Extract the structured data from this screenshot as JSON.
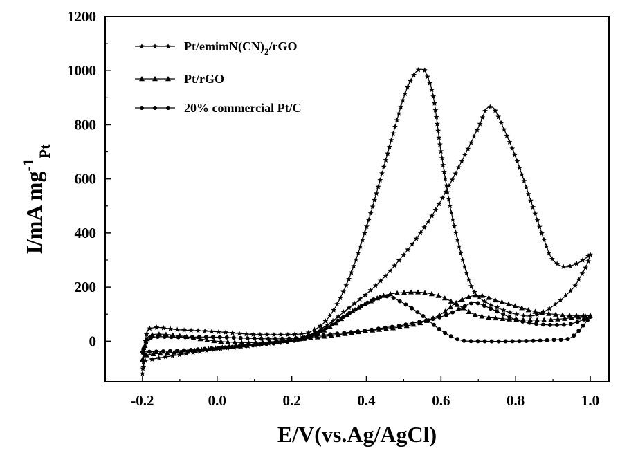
{
  "chart_data": {
    "type": "line",
    "title": "",
    "xlabel": "E/V(vs.Ag/AgCl)",
    "ylabel": "I/mA mg",
    "ylabel_sup": "-1",
    "ylabel_sub": "Pt",
    "xlim": [
      -0.3,
      1.05
    ],
    "ylim": [
      -150,
      1200
    ],
    "xticks": [
      -0.2,
      0.0,
      0.2,
      0.4,
      0.6,
      0.8,
      1.0
    ],
    "xtick_labels": [
      "-0.2",
      "0.0",
      "0.2",
      "0.4",
      "0.6",
      "0.8",
      "1.0"
    ],
    "yticks": [
      0,
      200,
      400,
      600,
      800,
      1000,
      1200
    ],
    "ytick_labels": [
      "0",
      "200",
      "400",
      "600",
      "800",
      "1000",
      "1200"
    ],
    "grid": false,
    "legend_position": "top-left",
    "series": [
      {
        "name": "Pt/emimN(CN)2/rGO",
        "legend_main": "Pt/emimN(CN)",
        "legend_sub": "2",
        "legend_tail": "/rGO",
        "marker": "star",
        "color": "#000000",
        "forward": [
          [
            -0.2,
            -120
          ],
          [
            -0.195,
            -80
          ],
          [
            -0.185,
            -70
          ],
          [
            -0.1,
            -50
          ],
          [
            0.0,
            -30
          ],
          [
            0.1,
            -15
          ],
          [
            0.2,
            5
          ],
          [
            0.25,
            25
          ],
          [
            0.3,
            65
          ],
          [
            0.35,
            120
          ],
          [
            0.4,
            175
          ],
          [
            0.45,
            240
          ],
          [
            0.5,
            320
          ],
          [
            0.55,
            410
          ],
          [
            0.6,
            520
          ],
          [
            0.65,
            650
          ],
          [
            0.7,
            790
          ],
          [
            0.72,
            855
          ],
          [
            0.735,
            865
          ],
          [
            0.75,
            840
          ],
          [
            0.8,
            680
          ],
          [
            0.85,
            480
          ],
          [
            0.88,
            360
          ],
          [
            0.9,
            300
          ],
          [
            0.93,
            275
          ],
          [
            0.96,
            285
          ],
          [
            0.98,
            300
          ],
          [
            1.0,
            320
          ]
        ],
        "reverse": [
          [
            1.0,
            320
          ],
          [
            0.99,
            280
          ],
          [
            0.97,
            230
          ],
          [
            0.95,
            190
          ],
          [
            0.9,
            130
          ],
          [
            0.85,
            95
          ],
          [
            0.8,
            100
          ],
          [
            0.75,
            125
          ],
          [
            0.7,
            165
          ],
          [
            0.67,
            245
          ],
          [
            0.63,
            460
          ],
          [
            0.6,
            700
          ],
          [
            0.58,
            900
          ],
          [
            0.56,
            990
          ],
          [
            0.55,
            1005
          ],
          [
            0.53,
            990
          ],
          [
            0.5,
            900
          ],
          [
            0.45,
            660
          ],
          [
            0.4,
            420
          ],
          [
            0.35,
            220
          ],
          [
            0.3,
            90
          ],
          [
            0.25,
            35
          ],
          [
            0.2,
            25
          ],
          [
            0.1,
            25
          ],
          [
            0.0,
            35
          ],
          [
            -0.1,
            42
          ],
          [
            -0.17,
            50
          ],
          [
            -0.19,
            20
          ],
          [
            -0.2,
            -120
          ]
        ]
      },
      {
        "name": "Pt/rGO",
        "legend_main": "Pt/rGO",
        "marker": "triangle",
        "color": "#000000",
        "forward": [
          [
            -0.2,
            -70
          ],
          [
            -0.185,
            -50
          ],
          [
            -0.1,
            -40
          ],
          [
            0.0,
            -25
          ],
          [
            0.1,
            -10
          ],
          [
            0.2,
            5
          ],
          [
            0.25,
            20
          ],
          [
            0.3,
            50
          ],
          [
            0.35,
            100
          ],
          [
            0.4,
            140
          ],
          [
            0.45,
            170
          ],
          [
            0.5,
            180
          ],
          [
            0.55,
            180
          ],
          [
            0.6,
            165
          ],
          [
            0.65,
            130
          ],
          [
            0.7,
            95
          ],
          [
            0.8,
            80
          ],
          [
            0.9,
            80
          ],
          [
            1.0,
            95
          ]
        ],
        "reverse": [
          [
            1.0,
            95
          ],
          [
            0.95,
            95
          ],
          [
            0.9,
            100
          ],
          [
            0.85,
            110
          ],
          [
            0.8,
            130
          ],
          [
            0.75,
            150
          ],
          [
            0.7,
            170
          ],
          [
            0.65,
            150
          ],
          [
            0.6,
            100
          ],
          [
            0.55,
            70
          ],
          [
            0.5,
            55
          ],
          [
            0.45,
            45
          ],
          [
            0.4,
            38
          ],
          [
            0.3,
            20
          ],
          [
            0.2,
            5
          ],
          [
            0.1,
            -5
          ],
          [
            0.0,
            0
          ],
          [
            -0.1,
            20
          ],
          [
            -0.17,
            25
          ],
          [
            -0.19,
            0
          ],
          [
            -0.2,
            -70
          ]
        ]
      },
      {
        "name": "20% commercial Pt/C",
        "legend_main": "20% commercial Pt/C",
        "marker": "circle",
        "color": "#000000",
        "forward": [
          [
            -0.2,
            -40
          ],
          [
            -0.1,
            -35
          ],
          [
            0.0,
            -25
          ],
          [
            0.1,
            -15
          ],
          [
            0.2,
            0
          ],
          [
            0.25,
            20
          ],
          [
            0.3,
            55
          ],
          [
            0.35,
            100
          ],
          [
            0.4,
            140
          ],
          [
            0.43,
            160
          ],
          [
            0.46,
            165
          ],
          [
            0.5,
            140
          ],
          [
            0.55,
            95
          ],
          [
            0.6,
            40
          ],
          [
            0.65,
            5
          ],
          [
            0.7,
            0
          ],
          [
            0.8,
            0
          ],
          [
            0.9,
            5
          ],
          [
            0.95,
            15
          ],
          [
            1.0,
            90
          ]
        ],
        "reverse": [
          [
            1.0,
            90
          ],
          [
            0.95,
            65
          ],
          [
            0.9,
            60
          ],
          [
            0.85,
            65
          ],
          [
            0.8,
            80
          ],
          [
            0.75,
            110
          ],
          [
            0.7,
            140
          ],
          [
            0.68,
            140
          ],
          [
            0.65,
            120
          ],
          [
            0.6,
            90
          ],
          [
            0.5,
            60
          ],
          [
            0.45,
            50
          ],
          [
            0.4,
            40
          ],
          [
            0.3,
            25
          ],
          [
            0.2,
            10
          ],
          [
            0.1,
            10
          ],
          [
            0.0,
            15
          ],
          [
            -0.1,
            15
          ],
          [
            -0.17,
            15
          ],
          [
            -0.19,
            -5
          ],
          [
            -0.2,
            -40
          ]
        ]
      }
    ]
  }
}
